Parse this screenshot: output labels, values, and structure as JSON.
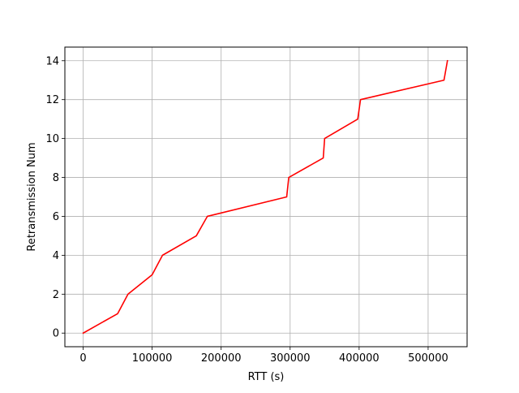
{
  "chart_data": {
    "type": "line",
    "title": "",
    "xlabel": "RTT (s)",
    "ylabel": "Retransmission Num",
    "xlim": [
      -26500,
      556500
    ],
    "ylim": [
      -0.7,
      14.7
    ],
    "grid": true,
    "x_ticks": [
      0,
      100000,
      200000,
      300000,
      400000,
      500000
    ],
    "x_tick_labels": [
      "0",
      "100000",
      "200000",
      "300000",
      "400000",
      "500000"
    ],
    "y_ticks": [
      0,
      2,
      4,
      6,
      8,
      10,
      12,
      14
    ],
    "y_tick_labels": [
      "0",
      "2",
      "4",
      "6",
      "8",
      "10",
      "12",
      "14"
    ],
    "series": [
      {
        "color": "#ff0000",
        "x": [
          0,
          50000,
          65000,
          100000,
          115000,
          164000,
          180000,
          295000,
          298000,
          348000,
          350000,
          398000,
          402000,
          523000,
          528000
        ],
        "y": [
          0,
          1,
          2,
          3,
          4,
          5,
          6,
          7,
          8,
          9,
          10,
          11,
          12,
          13,
          14
        ]
      }
    ]
  }
}
